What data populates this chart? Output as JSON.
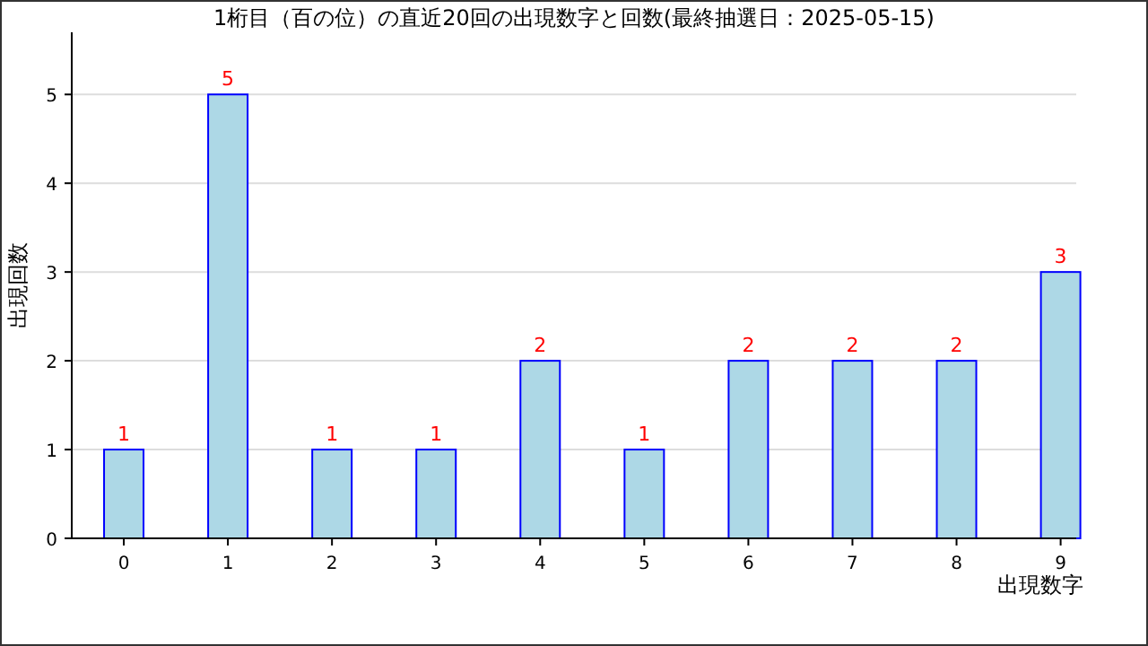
{
  "chart_data": {
    "type": "bar",
    "title": "1桁目（百の位）の直近20回の出現数字と回数(最終抽選日：2025-05-15)",
    "xlabel": "出現数字",
    "ylabel": "出現回数",
    "categories": [
      "0",
      "1",
      "2",
      "3",
      "4",
      "5",
      "6",
      "7",
      "8",
      "9"
    ],
    "values": [
      1,
      5,
      1,
      1,
      2,
      1,
      2,
      2,
      2,
      3
    ],
    "color": "#add8e6",
    "ylim": [
      0,
      5.7
    ],
    "yticks": [
      0,
      1,
      2,
      3,
      4,
      5
    ],
    "grid": "y",
    "data_labels": true
  }
}
